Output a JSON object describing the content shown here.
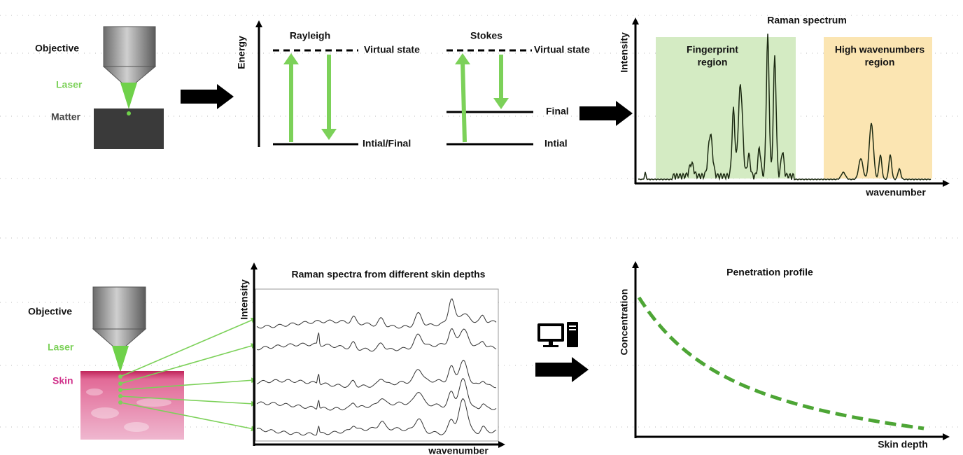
{
  "raman_principle": {
    "microscope": {
      "objective": "Objective",
      "laser": "Laser",
      "matter": "Matter"
    },
    "energy_diagram": {
      "axis_label": "Energy",
      "rayleigh": {
        "title": "Rayleigh",
        "virtual_state": "Virtual state",
        "ground": "Intial/Final"
      },
      "stokes": {
        "title": "Stokes",
        "virtual_state": "Virtual state",
        "final": "Final",
        "initial": "Intial"
      }
    },
    "spectrum": {
      "title": "Raman spectrum",
      "y_label": "Intensity",
      "x_label": "wavenumber",
      "fingerprint_region": [
        "Fingerprint",
        "region"
      ],
      "high_region": [
        "High wavenumbers",
        "region"
      ]
    }
  },
  "skin_measurement": {
    "microscope": {
      "objective": "Objective",
      "laser": "Laser",
      "skin": "Skin"
    },
    "spectra": {
      "title": "Raman spectra from different skin depths",
      "y_label": "Intensity",
      "x_label": "wavenumber"
    },
    "profile": {
      "title": "Penetration profile",
      "y_label": "Concentration",
      "x_label": "Skin depth"
    }
  }
}
